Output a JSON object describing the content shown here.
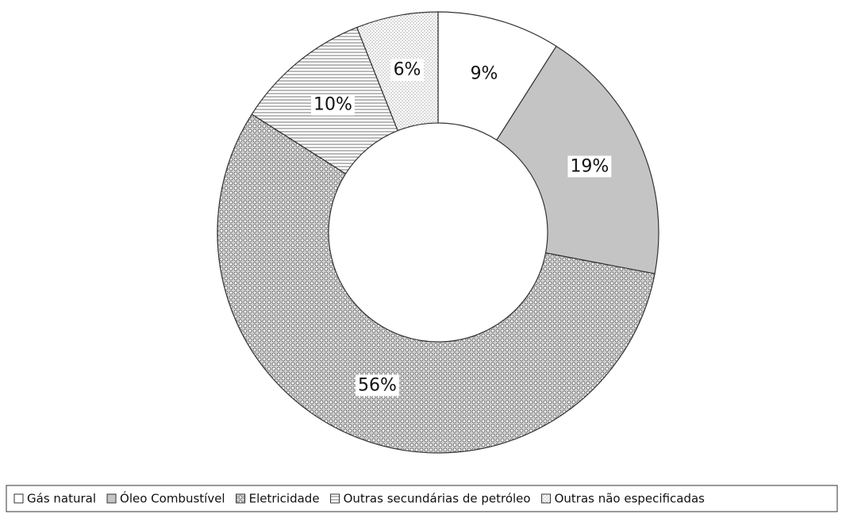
{
  "chart_data": {
    "type": "donut",
    "categories": [
      "Gás natural",
      "Óleo Combustível",
      "Eletricidade",
      "Outras secundárias de petróleo",
      "Outras não especificadas"
    ],
    "values": [
      9,
      19,
      56,
      10,
      6
    ],
    "value_labels": [
      "9%",
      "19%",
      "56%",
      "10%",
      "6%"
    ],
    "colors": [
      "#ffffff",
      "#c4c4c4",
      "#ffffff",
      "#ffffff",
      "#ffffff"
    ],
    "patterns": [
      "none",
      "none",
      "dots-dense",
      "horizontal",
      "dots-fine"
    ],
    "legend": "bottom"
  }
}
